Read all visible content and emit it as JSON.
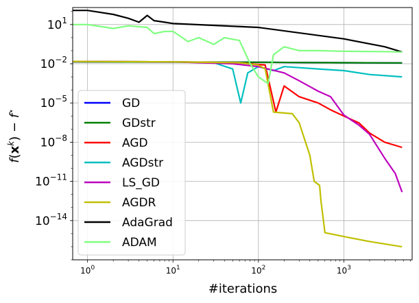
{
  "chart_data": {
    "type": "line",
    "title": "",
    "xlabel": "#iterations",
    "ylabel": "f(x^k) − f*",
    "xscale": "log",
    "yscale": "log",
    "xlim": [
      0.67,
      6300
    ],
    "ylim": [
      1e-17,
      200.0
    ],
    "grid": true,
    "legend_position": "center-left",
    "x_ticks": [
      {
        "value": 1,
        "base": "10",
        "exp": "0"
      },
      {
        "value": 10,
        "base": "10",
        "exp": "1"
      },
      {
        "value": 100,
        "base": "10",
        "exp": "2"
      },
      {
        "value": 1000,
        "base": "10",
        "exp": "3"
      }
    ],
    "y_ticks": [
      {
        "value": 10,
        "base": "10",
        "exp": "1"
      },
      {
        "value": 0.01,
        "base": "10",
        "exp": "−2"
      },
      {
        "value": 1e-05,
        "base": "10",
        "exp": "−5"
      },
      {
        "value": 1e-08,
        "base": "10",
        "exp": "−8"
      },
      {
        "value": 1e-11,
        "base": "10",
        "exp": "−11"
      },
      {
        "value": 1e-14,
        "base": "10",
        "exp": "−14"
      }
    ],
    "series": [
      {
        "name": "GD",
        "color": "#0000ff",
        "points": [
          [
            0.67,
            0.014
          ],
          [
            10,
            0.0135
          ],
          [
            100,
            0.013
          ],
          [
            300,
            0.0125
          ],
          [
            1000,
            0.012
          ],
          [
            4800,
            0.0115
          ]
        ]
      },
      {
        "name": "GDstr",
        "color": "#008000",
        "points": [
          [
            0.67,
            0.014
          ],
          [
            10,
            0.0135
          ],
          [
            100,
            0.013
          ],
          [
            300,
            0.0125
          ],
          [
            1000,
            0.012
          ],
          [
            4800,
            0.0115
          ]
        ]
      },
      {
        "name": "AGD",
        "color": "#ff0000",
        "points": [
          [
            0.67,
            0.015
          ],
          [
            10,
            0.014
          ],
          [
            60,
            0.012
          ],
          [
            120,
            0.008
          ],
          [
            160,
            2e-06
          ],
          [
            200,
            0.0002
          ],
          [
            300,
            3e-05
          ],
          [
            500,
            1e-05
          ],
          [
            700,
            3e-06
          ],
          [
            1000,
            1e-06
          ],
          [
            1500,
            3e-07
          ],
          [
            2000,
            5e-08
          ],
          [
            3000,
            1e-08
          ],
          [
            4800,
            4e-09
          ]
        ]
      },
      {
        "name": "AGDstr",
        "color": "#00bfbf",
        "points": [
          [
            0.67,
            0.015
          ],
          [
            10,
            0.014
          ],
          [
            30,
            0.012
          ],
          [
            50,
            0.004
          ],
          [
            62,
            1e-05
          ],
          [
            75,
            0.002
          ],
          [
            100,
            0.006
          ],
          [
            150,
            0.003
          ],
          [
            200,
            0.006
          ],
          [
            300,
            0.005
          ],
          [
            500,
            0.004
          ],
          [
            1000,
            0.003
          ],
          [
            2000,
            0.0015
          ],
          [
            4800,
            0.001
          ]
        ]
      },
      {
        "name": "LS_GD",
        "color": "#bf00bf",
        "points": [
          [
            0.67,
            0.015
          ],
          [
            10,
            0.014
          ],
          [
            50,
            0.01
          ],
          [
            100,
            0.006
          ],
          [
            200,
            0.002
          ],
          [
            300,
            0.0005
          ],
          [
            500,
            8e-05
          ],
          [
            700,
            3e-05
          ],
          [
            1000,
            1.2e-06
          ],
          [
            1500,
            2e-07
          ],
          [
            2000,
            4e-08
          ],
          [
            3000,
            6e-10
          ],
          [
            4000,
            4e-11
          ],
          [
            4800,
            1.5e-12
          ]
        ]
      },
      {
        "name": "AGDR",
        "color": "#bfbf00",
        "points": [
          [
            0.67,
            0.015
          ],
          [
            10,
            0.014
          ],
          [
            60,
            0.012
          ],
          [
            100,
            0.008
          ],
          [
            120,
            0.004
          ],
          [
            150,
            2e-06
          ],
          [
            250,
            1.5e-06
          ],
          [
            300,
            3e-07
          ],
          [
            400,
            1e-09
          ],
          [
            450,
            1e-11
          ],
          [
            520,
            5e-12
          ],
          [
            540,
            3e-13
          ],
          [
            560,
            5e-14
          ],
          [
            600,
            1.2e-15
          ],
          [
            1000,
            6e-16
          ],
          [
            2000,
            2.5e-16
          ],
          [
            4800,
            1e-16
          ]
        ]
      },
      {
        "name": "AdaGrad",
        "color": "#000000",
        "points": [
          [
            0.67,
            120
          ],
          [
            1,
            120
          ],
          [
            2,
            60
          ],
          [
            3,
            30
          ],
          [
            4,
            15
          ],
          [
            5,
            50
          ],
          [
            6,
            20
          ],
          [
            8,
            15
          ],
          [
            10,
            12
          ],
          [
            100,
            6
          ],
          [
            1000,
            0.8
          ],
          [
            3000,
            0.2
          ],
          [
            4800,
            0.08
          ]
        ]
      },
      {
        "name": "ADAM",
        "color": "#7fff7f",
        "points": [
          [
            0.67,
            10
          ],
          [
            1,
            10
          ],
          [
            2,
            5
          ],
          [
            3,
            8
          ],
          [
            5,
            6
          ],
          [
            6,
            2
          ],
          [
            8,
            3
          ],
          [
            10,
            3
          ],
          [
            15,
            0.5
          ],
          [
            20,
            1
          ],
          [
            30,
            0.3
          ],
          [
            40,
            1
          ],
          [
            60,
            0.6
          ],
          [
            80,
            0.01
          ],
          [
            100,
            0.001
          ],
          [
            130,
            0.0003
          ],
          [
            150,
            0.05
          ],
          [
            200,
            0.2
          ],
          [
            300,
            0.1
          ],
          [
            500,
            0.1
          ],
          [
            1000,
            0.09
          ],
          [
            3000,
            0.085
          ],
          [
            4800,
            0.08
          ]
        ]
      }
    ]
  }
}
